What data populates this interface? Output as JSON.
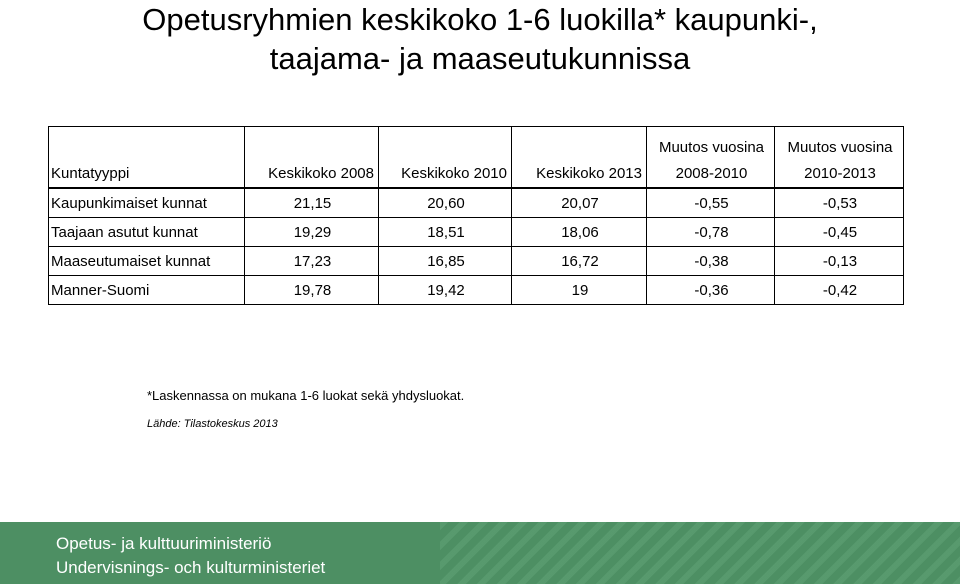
{
  "title": {
    "line1": "Opetusryhmien keskikoko 1-6 luokilla* kaupunki-,",
    "line2": "taajama- ja maaseutukunnissa"
  },
  "table": {
    "headers": [
      {
        "line1": "",
        "line2": "Kuntatyyppi"
      },
      {
        "line1": "",
        "line2": "Keskikoko 2008"
      },
      {
        "line1": "",
        "line2": "Keskikoko 2010"
      },
      {
        "line1": "",
        "line2": "Keskikoko 2013"
      },
      {
        "line1": "Muutos vuosina",
        "line2": "2008-2010"
      },
      {
        "line1": "Muutos vuosina",
        "line2": "2010-2013"
      }
    ],
    "rows": [
      {
        "type": "Kaupunkimaiset kunnat",
        "k2008": "21,15",
        "k2010": "20,60",
        "k2013": "20,07",
        "m0810": "-0,55",
        "m1013": "-0,53"
      },
      {
        "type": "Taajaan asutut kunnat",
        "k2008": "19,29",
        "k2010": "18,51",
        "k2013": "18,06",
        "m0810": "-0,78",
        "m1013": "-0,45"
      },
      {
        "type": "Maaseutumaiset kunnat",
        "k2008": "17,23",
        "k2010": "16,85",
        "k2013": "16,72",
        "m0810": "-0,38",
        "m1013": "-0,13"
      },
      {
        "type": "Manner-Suomi",
        "k2008": "19,78",
        "k2010": "19,42",
        "k2013": "19",
        "m0810": "-0,36",
        "m1013": "-0,42"
      }
    ]
  },
  "footnote": "*Laskennassa on mukana 1-6 luokat sekä yhdysluokat.",
  "source": "Lähde: Tilastokeskus 2013",
  "footer": {
    "line1": "Opetus- ja kulttuuriministeriö",
    "line2": "Undervisnings- och kulturministeriet",
    "color": "#4d8f63"
  }
}
